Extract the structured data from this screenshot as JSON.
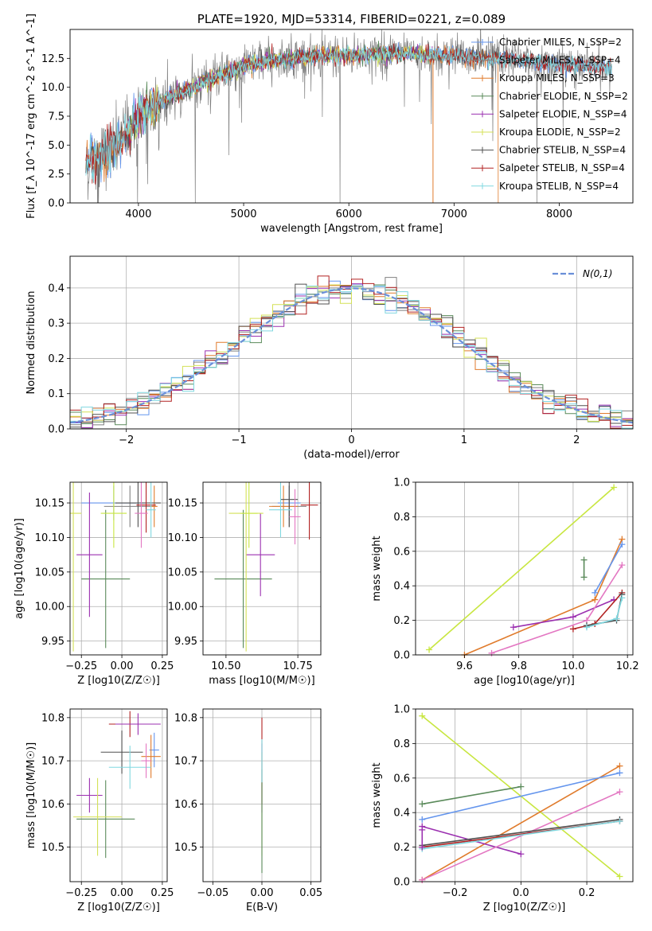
{
  "colors": {
    "chabrier_miles": "#6495ed",
    "salpeter_miles": "#808080",
    "kroupa_miles": "#e07b2c",
    "chabrier_elodie": "#5a8a5a",
    "salpeter_elodie": "#9b30b0",
    "kroupa_elodie": "#d4e157",
    "chabrier_stelib": "#505050",
    "salpeter_stelib": "#b22222",
    "kroupa_stelib": "#80d8e0",
    "pink": "#e377c2",
    "lime": "#c8e640",
    "normal": "#6a8fd8"
  },
  "chart_data": [
    {
      "id": "spectrum",
      "type": "line",
      "title": "PLATE=1920, MJD=53314, FIBERID=0221, z=0.089",
      "xlabel": "wavelength [Angstrom, rest frame]",
      "ylabel": "Flux [f_λ 10^-17 erg cm^-2 s^-1 A^-1]",
      "xlim": [
        3350,
        8700
      ],
      "ylim": [
        0,
        15
      ],
      "xticks": [
        4000,
        5000,
        6000,
        7000,
        8000
      ],
      "yticks": [
        0.0,
        2.5,
        5.0,
        7.5,
        10.0,
        12.5
      ],
      "grid": false,
      "legend_position": "right",
      "continuum": {
        "x": [
          3500,
          3600,
          3700,
          3800,
          3900,
          4000,
          4200,
          4400,
          4600,
          4800,
          5000,
          5200,
          5500,
          6000,
          6500,
          7000,
          7500,
          8000,
          8500
        ],
        "y": [
          3.5,
          3.8,
          4.3,
          5.0,
          6.0,
          7.6,
          8.7,
          9.5,
          10.4,
          11.1,
          11.8,
          12.2,
          12.6,
          12.8,
          12.9,
          12.7,
          12.4,
          12.0,
          11.7
        ]
      },
      "series": [
        {
          "name": "Chabrier MILES, N_SSP=2",
          "color": "#6495ed",
          "x_range": [
            3500,
            8500
          ]
        },
        {
          "name": "Salpeter MILES, N_SSP=4",
          "color": "#808080",
          "x_range": [
            3500,
            8500
          ]
        },
        {
          "name": "Kroupa MILES, N_SSP=3",
          "color": "#e07b2c",
          "x_range": [
            3500,
            7420
          ]
        },
        {
          "name": "Chabrier ELODIE, N_SSP=2",
          "color": "#5a8a5a",
          "x_range": [
            3900,
            6800
          ]
        },
        {
          "name": "Salpeter ELODIE, N_SSP=4",
          "color": "#9b30b0",
          "x_range": [
            3900,
            6800
          ]
        },
        {
          "name": "Kroupa ELODIE, N_SSP=2",
          "color": "#d4e157",
          "x_range": [
            3900,
            6800
          ]
        },
        {
          "name": "Chabrier STELIB, N_SSP=4",
          "color": "#505050",
          "x_range": [
            3500,
            8500
          ]
        },
        {
          "name": "Salpeter STELIB, N_SSP=4",
          "color": "#b22222",
          "x_range": [
            3500,
            8500
          ]
        },
        {
          "name": "Kroupa STELIB, N_SSP=4",
          "color": "#80d8e0",
          "x_range": [
            3500,
            8500
          ]
        }
      ]
    },
    {
      "id": "residuals",
      "type": "line",
      "xlabel": "(data-model)/error",
      "ylabel": "Normed distribution",
      "xlim": [
        -2.5,
        2.5
      ],
      "ylim": [
        0,
        0.49
      ],
      "xticks": [
        -2,
        -1,
        0,
        1,
        2
      ],
      "yticks": [
        0.0,
        0.1,
        0.2,
        0.3,
        0.4
      ],
      "grid": true,
      "legend_position": "top-right",
      "legend": "N(0,1)",
      "curve": "normal(0,1)",
      "histogram_bins": {
        "start": -2.5,
        "width": 0.1,
        "count": 50
      }
    },
    {
      "id": "z-age",
      "type": "scatter",
      "xlabel": "Z [log10(Z/Z☉)]",
      "ylabel": "age [log10(age/yr)]",
      "xlim": [
        -0.32,
        0.28
      ],
      "ylim": [
        9.93,
        10.18
      ],
      "xticks": [
        -0.25,
        0.0,
        0.25
      ],
      "yticks": [
        9.95,
        10.0,
        10.05,
        10.1,
        10.15
      ],
      "grid": true,
      "points": [
        {
          "x": -0.05,
          "xerr": 0.2,
          "y": 10.15,
          "yerr": 0.025,
          "color": "#6495ed"
        },
        {
          "x": 0.05,
          "xerr": 0.16,
          "y": 10.145,
          "yerr": 0.03,
          "color": "#808080"
        },
        {
          "x": 0.2,
          "xerr": 0.02,
          "y": 10.145,
          "yerr": 0.03,
          "color": "#e07b2c"
        },
        {
          "x": -0.1,
          "xerr": 0.15,
          "y": 10.04,
          "yerr": 0.1,
          "color": "#5a8a5a"
        },
        {
          "x": -0.2,
          "xerr": 0.08,
          "y": 10.075,
          "yerr": 0.09,
          "color": "#9b30b0"
        },
        {
          "x": -0.3,
          "xerr": 0.05,
          "y": 10.135,
          "yerr": 0.2,
          "color": "#d4e157"
        },
        {
          "x": 0.1,
          "xerr": 0.14,
          "y": 10.15,
          "yerr": 0.035,
          "color": "#505050"
        },
        {
          "x": 0.15,
          "xerr": 0.06,
          "y": 10.147,
          "yerr": 0.04,
          "color": "#b22222"
        },
        {
          "x": 0.12,
          "xerr": 0.04,
          "y": 10.135,
          "yerr": 0.05,
          "color": "#e377c2"
        },
        {
          "x": 0.18,
          "xerr": 0.03,
          "y": 10.14,
          "yerr": 0.04,
          "color": "#80d8e0"
        },
        {
          "x": -0.05,
          "xerr": 0.08,
          "y": 10.135,
          "yerr": 0.05,
          "color": "#c8e640"
        }
      ]
    },
    {
      "id": "mass-age",
      "type": "scatter",
      "xlabel": "mass [log10(M/M☉)]",
      "ylabel": "",
      "xlim": [
        10.42,
        10.83
      ],
      "ylim": [
        9.93,
        10.18
      ],
      "xticks": [
        10.5,
        10.75
      ],
      "yticks": [
        9.95,
        10.0,
        10.05,
        10.1,
        10.15
      ],
      "grid": true,
      "points": [
        {
          "x": 10.72,
          "xerr": 0.04,
          "y": 10.15,
          "yerr": 0.025,
          "color": "#6495ed"
        },
        {
          "x": 10.72,
          "xerr": 0.06,
          "y": 10.145,
          "yerr": 0.03,
          "color": "#808080"
        },
        {
          "x": 10.7,
          "xerr": 0.05,
          "y": 10.145,
          "yerr": 0.03,
          "color": "#e07b2c"
        },
        {
          "x": 10.56,
          "xerr": 0.1,
          "y": 10.04,
          "yerr": 0.1,
          "color": "#5a8a5a"
        },
        {
          "x": 10.62,
          "xerr": 0.05,
          "y": 10.075,
          "yerr": 0.06,
          "color": "#9b30b0"
        },
        {
          "x": 10.57,
          "xerr": 0.06,
          "y": 10.135,
          "yerr": 0.2,
          "color": "#d4e157"
        },
        {
          "x": 10.72,
          "xerr": 0.03,
          "y": 10.155,
          "yerr": 0.04,
          "color": "#505050"
        },
        {
          "x": 10.79,
          "xerr": 0.03,
          "y": 10.147,
          "yerr": 0.05,
          "color": "#b22222"
        },
        {
          "x": 10.74,
          "xerr": 0.02,
          "y": 10.13,
          "yerr": 0.04,
          "color": "#e377c2"
        },
        {
          "x": 10.69,
          "xerr": 0.04,
          "y": 10.14,
          "yerr": 0.04,
          "color": "#80d8e0"
        },
        {
          "x": 10.58,
          "xerr": 0.03,
          "y": 10.135,
          "yerr": 0.05,
          "color": "#c8e640"
        }
      ]
    },
    {
      "id": "age-weight",
      "type": "line",
      "xlabel": "age [log10(age/yr)]",
      "ylabel": "mass weight",
      "xlim": [
        9.42,
        10.22
      ],
      "ylim": [
        0,
        1.0
      ],
      "xticks": [
        9.6,
        9.8,
        10.0,
        10.2
      ],
      "yticks": [
        0.0,
        0.2,
        0.4,
        0.6,
        0.8,
        1.0
      ],
      "grid": true,
      "series": [
        {
          "color": "#c8e640",
          "x": [
            9.47,
            10.15
          ],
          "y": [
            0.03,
            0.97
          ]
        },
        {
          "color": "#e07b2c",
          "x": [
            9.6,
            10.08,
            10.18
          ],
          "y": [
            0.0,
            0.32,
            0.67
          ]
        },
        {
          "color": "#6495ed",
          "x": [
            10.08,
            10.18
          ],
          "y": [
            0.36,
            0.64
          ]
        },
        {
          "color": "#5a8a5a",
          "x": [
            10.04,
            10.04
          ],
          "y": [
            0.45,
            0.55
          ]
        },
        {
          "color": "#9b30b0",
          "x": [
            9.78,
            10.0,
            10.15
          ],
          "y": [
            0.16,
            0.22,
            0.32
          ]
        },
        {
          "color": "#b22222",
          "x": [
            10.0,
            10.08,
            10.18
          ],
          "y": [
            0.15,
            0.18,
            0.36
          ]
        },
        {
          "color": "#e377c2",
          "x": [
            9.7,
            10.05,
            10.18
          ],
          "y": [
            0.01,
            0.2,
            0.52
          ]
        },
        {
          "color": "#505050",
          "x": [
            10.05,
            10.16,
            10.18
          ],
          "y": [
            0.17,
            0.2,
            0.35
          ]
        },
        {
          "color": "#80d8e0",
          "x": [
            10.05,
            10.16,
            10.18
          ],
          "y": [
            0.16,
            0.21,
            0.33
          ]
        }
      ]
    },
    {
      "id": "z-mass",
      "type": "scatter",
      "xlabel": "Z [log10(Z/Z☉)]",
      "ylabel": "mass [log10(M/M☉)]",
      "xlim": [
        -0.32,
        0.28
      ],
      "ylim": [
        10.42,
        10.82
      ],
      "xticks": [
        -0.25,
        0.0,
        0.25
      ],
      "yticks": [
        10.5,
        10.6,
        10.7,
        10.8
      ],
      "grid": true,
      "points": [
        {
          "x": 0.2,
          "xerr": 0.03,
          "y": 10.725,
          "yerr": 0.04,
          "color": "#6495ed"
        },
        {
          "x": 0.18,
          "xerr": 0.06,
          "y": 10.71,
          "yerr": 0.05,
          "color": "#e07b2c"
        },
        {
          "x": 0.05,
          "xerr": 0.13,
          "y": 10.785,
          "yerr": 0.03,
          "color": "#b22222"
        },
        {
          "x": 0.1,
          "xerr": 0.14,
          "y": 10.785,
          "yerr": 0.025,
          "color": "#9b30b0"
        },
        {
          "x": 0.0,
          "xerr": 0.13,
          "y": 10.72,
          "yerr": 0.05,
          "color": "#505050"
        },
        {
          "x": 0.05,
          "xerr": 0.13,
          "y": 10.685,
          "yerr": 0.05,
          "color": "#80d8e0"
        },
        {
          "x": -0.2,
          "xerr": 0.08,
          "y": 10.62,
          "yerr": 0.04,
          "color": "#9b30b0"
        },
        {
          "x": -0.1,
          "xerr": 0.18,
          "y": 10.565,
          "yerr": 0.09,
          "color": "#5a8a5a"
        },
        {
          "x": -0.15,
          "xerr": 0.15,
          "y": 10.57,
          "yerr": 0.09,
          "color": "#d4e157"
        },
        {
          "x": 0.15,
          "xerr": 0.03,
          "y": 10.7,
          "yerr": 0.04,
          "color": "#e377c2"
        }
      ]
    },
    {
      "id": "ebv-mass",
      "type": "scatter",
      "xlabel": "E(B-V)",
      "ylabel": "",
      "xlim": [
        -0.06,
        0.06
      ],
      "ylim": [
        10.42,
        10.82
      ],
      "xticks": [
        -0.05,
        0.0,
        0.05
      ],
      "yticks": [
        10.5,
        10.6,
        10.7,
        10.8
      ],
      "grid": true,
      "points": [
        {
          "x": 0.0,
          "y": 10.7,
          "yerr": 0.1,
          "color": "#b22222"
        },
        {
          "x": 0.0,
          "y": 10.66,
          "yerr": 0.08,
          "color": "#9b30b0"
        },
        {
          "x": 0.0,
          "y": 10.6,
          "yerr": 0.12,
          "color": "#d4e157"
        },
        {
          "x": 0.0,
          "y": 10.56,
          "yerr": 0.12,
          "color": "#5a8a5a"
        },
        {
          "x": 0.0,
          "y": 10.7,
          "yerr": 0.05,
          "color": "#80d8e0"
        }
      ]
    },
    {
      "id": "z-weight",
      "type": "line",
      "xlabel": "Z [log10(Z/Z☉)]",
      "ylabel": "mass weight",
      "xlim": [
        -0.32,
        0.34
      ],
      "ylim": [
        0,
        1.0
      ],
      "xticks": [
        -0.2,
        0.0,
        0.2
      ],
      "yticks": [
        0.0,
        0.2,
        0.4,
        0.6,
        0.8,
        1.0
      ],
      "grid": true,
      "series": [
        {
          "color": "#c8e640",
          "x": [
            -0.3,
            0.3
          ],
          "y": [
            0.96,
            0.03
          ]
        },
        {
          "color": "#e07b2c",
          "x": [
            -0.3,
            0.3
          ],
          "y": [
            0.01,
            0.67
          ]
        },
        {
          "color": "#6495ed",
          "x": [
            -0.3,
            0.3
          ],
          "y": [
            0.36,
            0.63
          ]
        },
        {
          "color": "#5a8a5a",
          "x": [
            -0.3,
            0.0
          ],
          "y": [
            0.45,
            0.55
          ]
        },
        {
          "color": "#9b30b0",
          "x": [
            -0.3,
            0.0
          ],
          "y": [
            0.32,
            0.16
          ]
        },
        {
          "color": "#e377c2",
          "x": [
            -0.3,
            0.3
          ],
          "y": [
            0.01,
            0.52
          ]
        },
        {
          "color": "#505050",
          "x": [
            -0.3,
            0.3
          ],
          "y": [
            0.21,
            0.36
          ]
        },
        {
          "color": "#b22222",
          "x": [
            -0.3,
            0.3
          ],
          "y": [
            0.2,
            0.35
          ]
        },
        {
          "color": "#80d8e0",
          "x": [
            -0.3,
            0.3
          ],
          "y": [
            0.19,
            0.35
          ]
        },
        {
          "color": "#9b30b0",
          "x": [
            -0.3,
            -0.3
          ],
          "y": [
            0.2,
            0.3
          ]
        }
      ]
    }
  ]
}
